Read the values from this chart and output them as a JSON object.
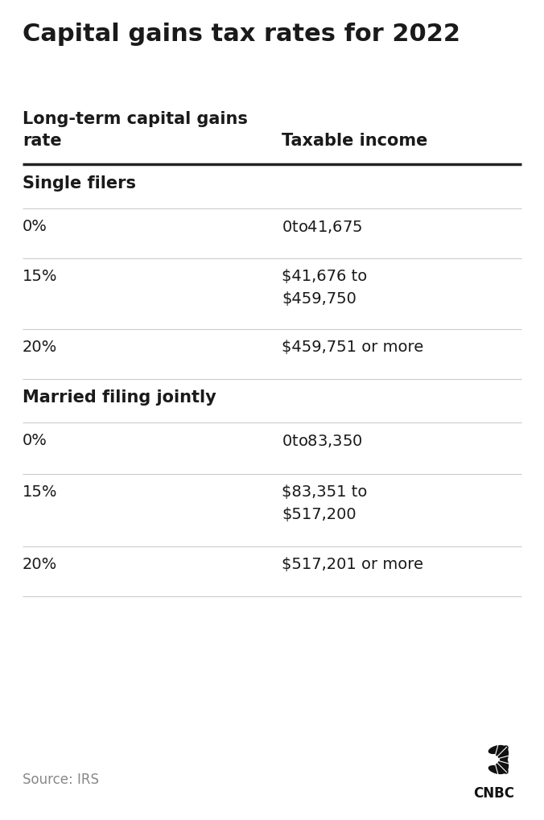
{
  "title": "Capital gains tax rates for 2022",
  "col1_header_line1": "Long-term capital gains",
  "col1_header_line2": "rate",
  "col2_header": "Taxable income",
  "sections": [
    {
      "section_title": "Single filers",
      "rows": [
        {
          "rate": "0%",
          "income_line1": "$0 to $41,675",
          "income_line2": ""
        },
        {
          "rate": "15%",
          "income_line1": "$41,676 to",
          "income_line2": "$459,750"
        },
        {
          "rate": "20%",
          "income_line1": "$459,751 or more",
          "income_line2": ""
        }
      ]
    },
    {
      "section_title": "Married filing jointly",
      "rows": [
        {
          "rate": "0%",
          "income_line1": "$0 to $83,350",
          "income_line2": ""
        },
        {
          "rate": "15%",
          "income_line1": "$83,351 to",
          "income_line2": "$517,200"
        },
        {
          "rate": "20%",
          "income_line1": "$517,201 or more",
          "income_line2": ""
        }
      ]
    }
  ],
  "source_text": "Source: IRS",
  "bg_color": "#ffffff",
  "text_color": "#1a1a1a",
  "header_color": "#1a1a1a",
  "section_title_color": "#1a1a1a",
  "light_line_color": "#cccccc",
  "heavy_line_color": "#222222",
  "source_color": "#888888",
  "title_fontsize": 22,
  "col_header_fontsize": 15,
  "section_title_fontsize": 15,
  "row_fontsize": 14,
  "source_fontsize": 12
}
